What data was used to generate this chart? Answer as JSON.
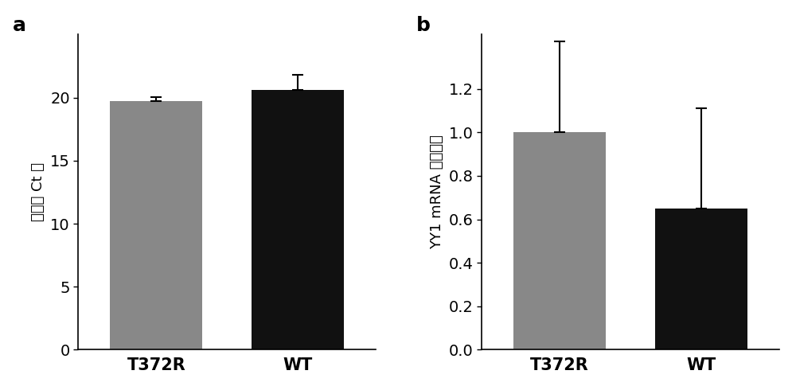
{
  "panel_a": {
    "categories": [
      "T372R",
      "WT"
    ],
    "values": [
      19.7,
      20.6
    ],
    "errors": [
      0.35,
      1.2
    ],
    "bar_colors": [
      "#888888",
      "#111111"
    ],
    "ylabel": "归一化 Ct 値",
    "ylim": [
      0,
      25
    ],
    "yticks": [
      0,
      5,
      10,
      15,
      20
    ],
    "panel_label": "a"
  },
  "panel_b": {
    "categories": [
      "T372R",
      "WT"
    ],
    "values": [
      1.0,
      0.65
    ],
    "errors": [
      0.42,
      0.46
    ],
    "bar_colors": [
      "#888888",
      "#111111"
    ],
    "ylabel": "YY1 mRNA 相对水平",
    "ylim": [
      0,
      1.45
    ],
    "yticks": [
      0,
      0.2,
      0.4,
      0.6,
      0.8,
      1.0,
      1.2
    ],
    "panel_label": "b"
  },
  "background_color": "#ffffff",
  "bar_width": 0.65,
  "fontsize_ticks": 14,
  "fontsize_ylabel": 13,
  "fontsize_label": 18,
  "fontsize_xticks": 15
}
